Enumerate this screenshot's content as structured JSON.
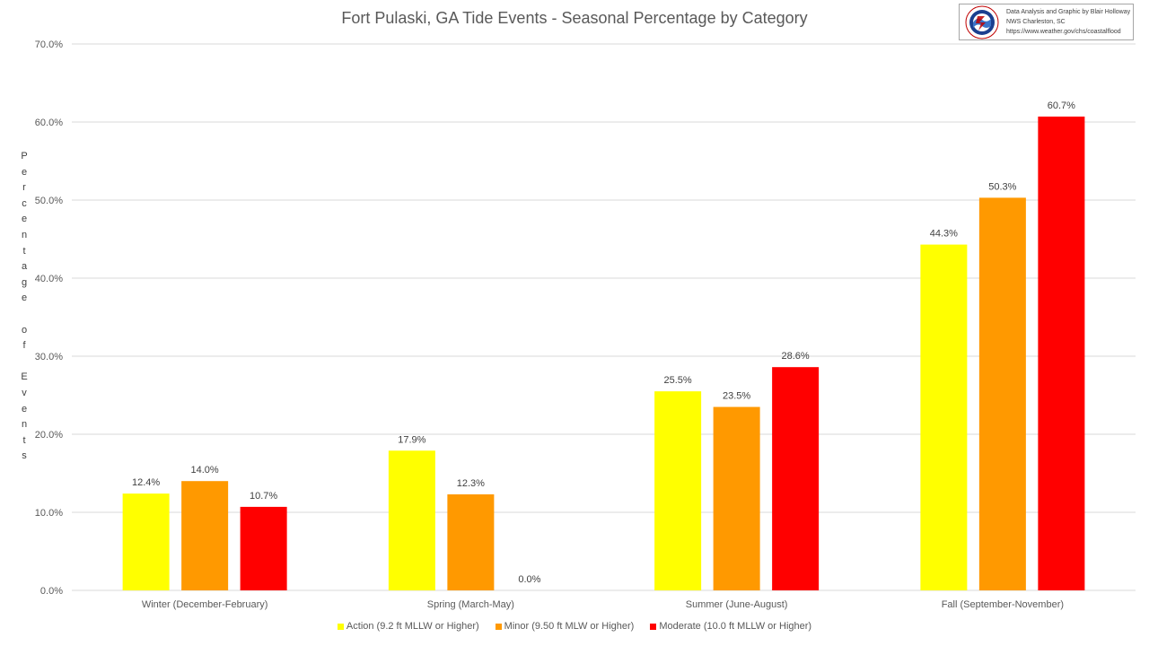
{
  "chart_data": {
    "type": "bar",
    "title": "Fort Pulaski, GA Tide Events - Seasonal Percentage by Category",
    "ylabel": "Percentage of Events",
    "xlabel": "",
    "ylim": [
      0,
      70
    ],
    "ytick_values": [
      0,
      10,
      20,
      30,
      40,
      50,
      60,
      70
    ],
    "ytick_labels": [
      "0.0%",
      "10.0%",
      "20.0%",
      "30.0%",
      "40.0%",
      "50.0%",
      "60.0%",
      "70.0%"
    ],
    "categories": [
      "Winter (December-February)",
      "Spring (March-May)",
      "Summer (June-August)",
      "Fall (September-November)"
    ],
    "series": [
      {
        "name": "Action (9.2 ft MLLW or Higher)",
        "color": "#ffff00",
        "values": [
          12.4,
          17.9,
          25.5,
          44.3
        ],
        "labels": [
          "12.4%",
          "17.9%",
          "25.5%",
          "44.3%"
        ]
      },
      {
        "name": "Minor (9.50 ft MLW or Higher)",
        "color": "#ff9900",
        "values": [
          14.0,
          12.3,
          23.5,
          50.3
        ],
        "labels": [
          "14.0%",
          "12.3%",
          "23.5%",
          "50.3%"
        ]
      },
      {
        "name": "Moderate (10.0 ft MLLW or Higher)",
        "color": "#ff0000",
        "values": [
          10.7,
          0.0,
          28.6,
          60.7
        ],
        "labels": [
          "10.7%",
          "0.0%",
          "28.6%",
          "60.7%"
        ]
      }
    ],
    "grid": true,
    "legend_position": "bottom"
  },
  "credit": {
    "line1": "Data Analysis and Graphic by Blair Holloway",
    "line2": "NWS Charleston, SC",
    "line3": "https://www.weather.gov/chs/coastalflood"
  },
  "colors": {
    "gridline": "#d9d9d9",
    "axis_text": "#595959",
    "logo_ring": "#1b3f8f",
    "logo_center": "#3b73c8"
  }
}
